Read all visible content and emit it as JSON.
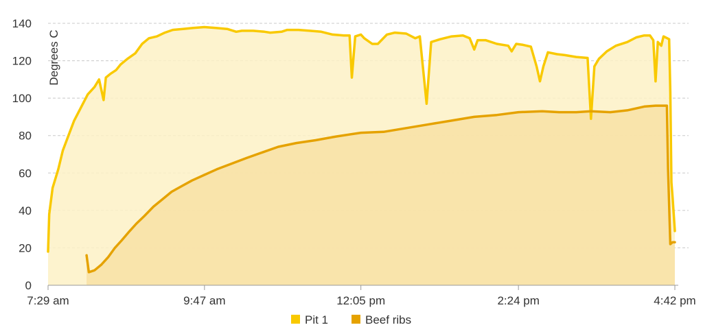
{
  "chart_data": {
    "type": "area",
    "ylabel": "Degrees C",
    "ylim": [
      0,
      140
    ],
    "yticks": [
      0,
      20,
      40,
      60,
      80,
      100,
      120,
      140
    ],
    "xlim": [
      "7:29 am",
      "4:42 pm"
    ],
    "xticks": [
      "7:29 am",
      "9:47 am",
      "12:05 pm",
      "2:24 pm",
      "4:42 pm"
    ],
    "grid": "horizontal dashed",
    "legend_position": "bottom",
    "series": [
      {
        "name": "Pit 1",
        "color": "#f9c900",
        "fill": "#fdf1c6",
        "points": [
          [
            "7:29 am",
            18
          ],
          [
            "7:30 am",
            38
          ],
          [
            "7:33 am",
            52
          ],
          [
            "7:38 am",
            62
          ],
          [
            "7:42 am",
            72
          ],
          [
            "7:47 am",
            80
          ],
          [
            "7:52 am",
            88
          ],
          [
            "7:58 am",
            95
          ],
          [
            "8:04 am",
            102
          ],
          [
            "8:10 am",
            106
          ],
          [
            "8:14 am",
            110
          ],
          [
            "8:18 am",
            99
          ],
          [
            "8:20 am",
            111
          ],
          [
            "8:24 am",
            113
          ],
          [
            "8:29 am",
            115
          ],
          [
            "8:33 am",
            118
          ],
          [
            "8:39 am",
            121
          ],
          [
            "8:46 am",
            124
          ],
          [
            "8:52 am",
            129
          ],
          [
            "8:58 am",
            132
          ],
          [
            "9:05 am",
            133
          ],
          [
            "9:12 am",
            135
          ],
          [
            "9:19 am",
            136.5
          ],
          [
            "9:28 am",
            137
          ],
          [
            "9:37 am",
            137.5
          ],
          [
            "9:47 am",
            138
          ],
          [
            "9:57 am",
            137.5
          ],
          [
            "10:07 am",
            137
          ],
          [
            "10:15 am",
            135.5
          ],
          [
            "10:20 am",
            136
          ],
          [
            "10:30 am",
            136
          ],
          [
            "10:40 am",
            135.5
          ],
          [
            "10:45 am",
            135
          ],
          [
            "10:55 am",
            135.5
          ],
          [
            "11:00 am",
            136.5
          ],
          [
            "11:10 am",
            136.5
          ],
          [
            "11:20 am",
            136
          ],
          [
            "11:30 am",
            135.5
          ],
          [
            "11:40 am",
            134
          ],
          [
            "11:50 am",
            133.5
          ],
          [
            "11:55 am",
            133.5
          ],
          [
            "11:57 am",
            111
          ],
          [
            "12:00 pm",
            133
          ],
          [
            "12:05 pm",
            134
          ],
          [
            "12:08 pm",
            132
          ],
          [
            "12:15 pm",
            129
          ],
          [
            "12:20 pm",
            129
          ],
          [
            "12:28 pm",
            134
          ],
          [
            "12:35 pm",
            135
          ],
          [
            "12:45 pm",
            134.5
          ],
          [
            "12:53 pm",
            132
          ],
          [
            "12:57 pm",
            133
          ],
          [
            "1:03 pm",
            97
          ],
          [
            "1:07 pm",
            130
          ],
          [
            "1:15 pm",
            131.5
          ],
          [
            "1:25 pm",
            133
          ],
          [
            "1:35 pm",
            133.5
          ],
          [
            "1:41 pm",
            132
          ],
          [
            "1:45 pm",
            126
          ],
          [
            "1:48 pm",
            131
          ],
          [
            "1:55 pm",
            131
          ],
          [
            "2:05 pm",
            129
          ],
          [
            "2:15 pm",
            128
          ],
          [
            "2:18 pm",
            125
          ],
          [
            "2:22 pm",
            129
          ],
          [
            "2:28 pm",
            128.5
          ],
          [
            "2:35 pm",
            127.5
          ],
          [
            "2:40 pm",
            117
          ],
          [
            "2:43 pm",
            109
          ],
          [
            "2:46 pm",
            117
          ],
          [
            "2:50 pm",
            124.5
          ],
          [
            "2:58 pm",
            123.5
          ],
          [
            "3:05 pm",
            123
          ],
          [
            "3:15 pm",
            122
          ],
          [
            "3:25 pm",
            121.5
          ],
          [
            "3:28 pm",
            89
          ],
          [
            "3:31 pm",
            117
          ],
          [
            "3:35 pm",
            121
          ],
          [
            "3:42 pm",
            125
          ],
          [
            "3:50 pm",
            128
          ],
          [
            "4:00 pm",
            130
          ],
          [
            "4:08 pm",
            132.5
          ],
          [
            "4:15 pm",
            133.5
          ],
          [
            "4:20 pm",
            133.5
          ],
          [
            "4:23 pm",
            131
          ],
          [
            "4:25 pm",
            109
          ],
          [
            "4:27 pm",
            130
          ],
          [
            "4:30 pm",
            128
          ],
          [
            "4:32 pm",
            133
          ],
          [
            "4:37 pm",
            131.5
          ],
          [
            "4:38 pm",
            103
          ],
          [
            "4:39 pm",
            55
          ],
          [
            "4:40 pm",
            47
          ],
          [
            "4:42 pm",
            29
          ]
        ]
      },
      {
        "name": "Beef ribs",
        "color": "#e5a200",
        "fill": "#f8e0a4",
        "points": [
          [
            "8:03 am",
            16
          ],
          [
            "8:05 am",
            7
          ],
          [
            "8:10 am",
            8
          ],
          [
            "8:16 am",
            11
          ],
          [
            "8:22 am",
            15
          ],
          [
            "8:28 am",
            20
          ],
          [
            "8:34 am",
            24
          ],
          [
            "8:41 am",
            29
          ],
          [
            "8:47 am",
            33
          ],
          [
            "8:54 am",
            37
          ],
          [
            "9:02 am",
            42
          ],
          [
            "9:10 am",
            46
          ],
          [
            "9:18 am",
            50
          ],
          [
            "9:27 am",
            53
          ],
          [
            "9:36 am",
            56
          ],
          [
            "9:47 am",
            59
          ],
          [
            "9:58 am",
            62
          ],
          [
            "10:11 am",
            65
          ],
          [
            "10:24 am",
            68
          ],
          [
            "10:38 am",
            71
          ],
          [
            "10:52 am",
            74
          ],
          [
            "11:08 am",
            76
          ],
          [
            "11:25 am",
            77.5
          ],
          [
            "11:43 am",
            79.5
          ],
          [
            "12:05 pm",
            81.5
          ],
          [
            "12:25 pm",
            82
          ],
          [
            "12:45 pm",
            84
          ],
          [
            "1:05 pm",
            86
          ],
          [
            "1:25 pm",
            88
          ],
          [
            "1:45 pm",
            90
          ],
          [
            "2:05 pm",
            91
          ],
          [
            "2:24 pm",
            92.5
          ],
          [
            "2:45 pm",
            93
          ],
          [
            "3:00 pm",
            92.5
          ],
          [
            "3:15 pm",
            92.5
          ],
          [
            "3:28 pm",
            93
          ],
          [
            "3:45 pm",
            92.5
          ],
          [
            "4:00 pm",
            93.5
          ],
          [
            "4:15 pm",
            95.5
          ],
          [
            "4:25 pm",
            96
          ],
          [
            "4:35 pm",
            96
          ],
          [
            "4:36 pm",
            62
          ],
          [
            "4:38 pm",
            22
          ],
          [
            "4:40 pm",
            23
          ],
          [
            "4:42 pm",
            23
          ]
        ]
      }
    ]
  }
}
